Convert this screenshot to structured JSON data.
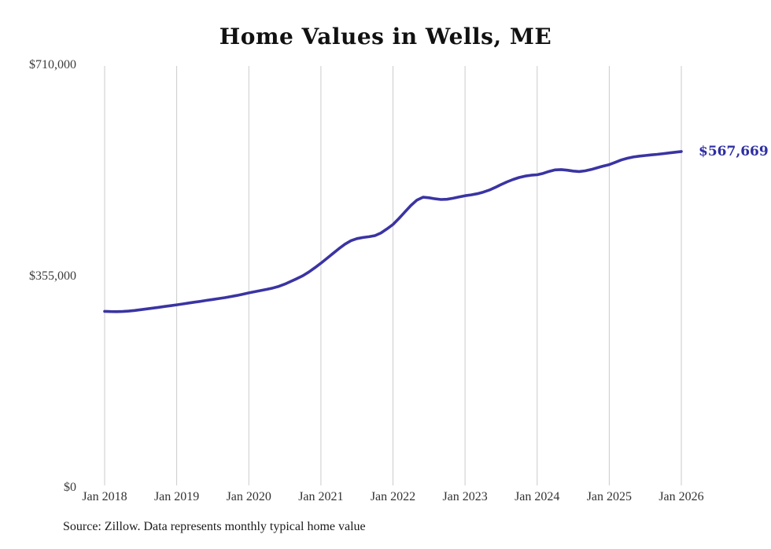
{
  "chart_data": {
    "type": "line",
    "title": "Home Values in Wells, ME",
    "source_note": "Source: Zillow. Data represents monthly typical home value",
    "end_label": "$567,669",
    "final_value": 567669,
    "line_color": "#3a34a3",
    "end_label_color": "#2e2ea4",
    "grid_color": "#cbcbcb",
    "grid": "vertical-only",
    "legend": "none",
    "ylim": [
      0,
      710000
    ],
    "y_ticks": [
      710000,
      355000,
      0
    ],
    "y_tick_labels": [
      "$710,000",
      "$355,000",
      "$0"
    ],
    "x_unit": "month",
    "x_start": "2018-01",
    "x_end": "2026-01",
    "x_tick_month_indices": [
      0,
      12,
      24,
      36,
      48,
      60,
      72,
      84,
      96
    ],
    "x_tick_labels": [
      "Jan 2018",
      "Jan 2019",
      "Jan 2020",
      "Jan 2021",
      "Jan 2022",
      "Jan 2023",
      "Jan 2024",
      "Jan 2025",
      "Jan 2026"
    ],
    "series": [
      {
        "name": "Monthly typical home value",
        "frequency": "monthly",
        "start": "2018-01",
        "values": [
          299000,
          298600,
          298500,
          298800,
          299500,
          300500,
          301800,
          303200,
          304500,
          305800,
          307200,
          308600,
          310000,
          311500,
          313000,
          314500,
          316000,
          317500,
          319000,
          320500,
          322000,
          323800,
          325700,
          327800,
          330000,
          332000,
          334000,
          336000,
          338200,
          341000,
          344800,
          349500,
          354000,
          359000,
          365200,
          372300,
          380000,
          388000,
          396200,
          404300,
          411900,
          417800,
          421200,
          423100,
          424400,
          426200,
          430800,
          437600,
          445000,
          455200,
          466300,
          477100,
          486000,
          490800,
          489900,
          488100,
          487000,
          487400,
          489100,
          491200,
          493300,
          494700,
          496600,
          499200,
          502700,
          507100,
          512000,
          516600,
          520600,
          523900,
          526300,
          527700,
          528500,
          530900,
          534200,
          536700,
          537300,
          536200,
          534700,
          534000,
          535100,
          537400,
          540300,
          543100,
          545500,
          549400,
          553300,
          556300,
          558400,
          559800,
          560900,
          561900,
          562900,
          564000,
          565200,
          566400,
          567669
        ]
      }
    ]
  }
}
